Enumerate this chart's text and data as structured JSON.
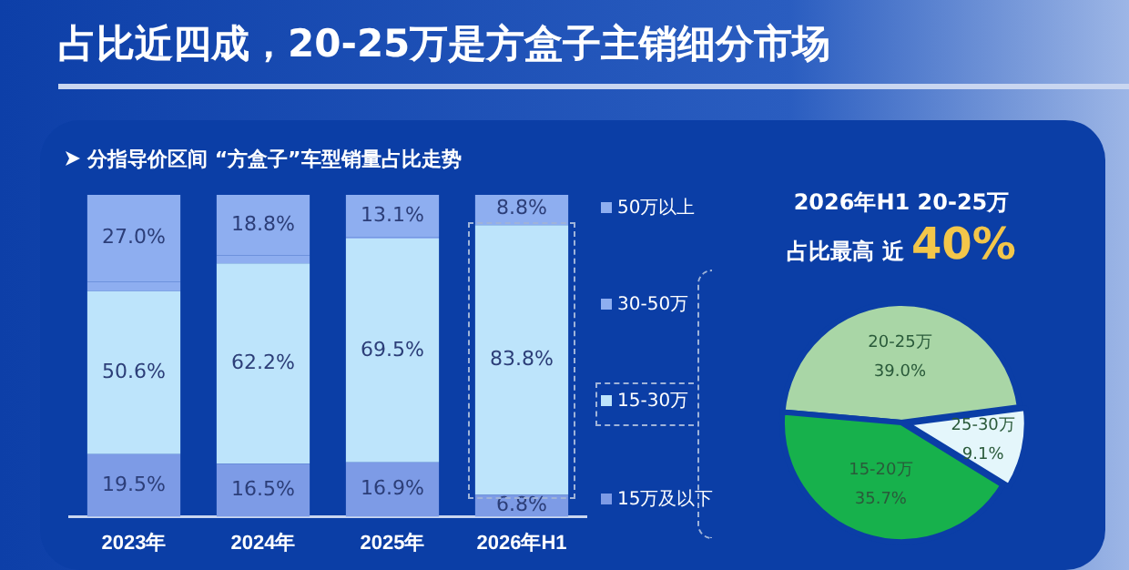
{
  "chart_data": [
    {
      "type": "bar",
      "title": "占比近四成，20-25万是方盒子主销细分市场",
      "subtitle": "分指导价区间 “方盒子”车型销量占比走势",
      "stacked": true,
      "legend": "right",
      "categories": [
        "2023年",
        "2024年",
        "2025年",
        "2026年H1"
      ],
      "series": [
        {
          "name": "15万及以下",
          "color": "#7d9be6",
          "values": [
            19.5,
            16.5,
            16.9,
            6.8
          ],
          "value_labels": [
            "19.5%",
            "16.5%",
            "16.9%",
            "6.8%"
          ]
        },
        {
          "name": "15-30万",
          "color": "#bde4fb",
          "values": [
            50.6,
            62.2,
            69.5,
            83.8
          ],
          "value_labels": [
            "50.6%",
            "62.2%",
            "69.5%",
            "83.8%"
          ]
        },
        {
          "name": "30-50万",
          "color": "#8eaef0",
          "values": [
            2.9,
            2.5,
            0.5,
            0.6
          ],
          "value_labels": [
            null,
            null,
            null,
            null
          ]
        },
        {
          "name": "50万以上",
          "color": "#8eaef0",
          "values": [
            27.0,
            18.8,
            13.1,
            8.8
          ],
          "value_labels": [
            "27.0%",
            "18.8%",
            "13.1%",
            "8.8%"
          ]
        }
      ]
    },
    {
      "type": "pie",
      "title": "2026年H1 20-25万",
      "annotations": [
        "占比最高 近",
        "40%"
      ],
      "categories": [
        "20-25万",
        "25-30万",
        "15-20万"
      ],
      "values": [
        39.0,
        9.1,
        35.7
      ],
      "value_labels": [
        "39.0%",
        "9.1%",
        "35.7%"
      ],
      "colors": [
        "#a9d6a6",
        "#e4f6fb",
        "#17b14c"
      ]
    }
  ]
}
